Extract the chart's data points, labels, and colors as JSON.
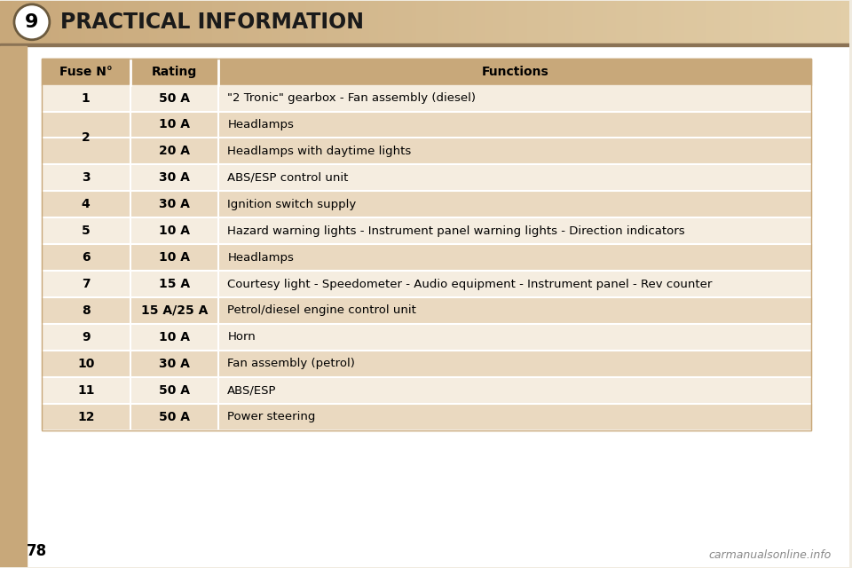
{
  "title": "PRACTICAL INFORMATION",
  "chapter_num": "9",
  "page_num": "78",
  "watermark": "carmanualsonline.info",
  "header_bg_left": "#C8A87A",
  "header_bg_right": "#E8D5B0",
  "header_text_color": "#1a1a1a",
  "table_header_bg": "#C8A87A",
  "row_bg_dark": "#EAD9C0",
  "row_bg_light": "#F5EDE0",
  "col_headers": [
    "Fuse N°",
    "Rating",
    "Functions"
  ],
  "rows": [
    {
      "fuse": "1",
      "rating": "50 A",
      "function": "\"2 Tronic\" gearbox - Fan assembly (diesel)",
      "span": 1
    },
    {
      "fuse": "2",
      "rating": "10 A",
      "function": "Headlamps",
      "span": 2
    },
    {
      "fuse": "",
      "rating": "20 A",
      "function": "Headlamps with daytime lights",
      "span": 0
    },
    {
      "fuse": "3",
      "rating": "30 A",
      "function": "ABS/ESP control unit",
      "span": 1
    },
    {
      "fuse": "4",
      "rating": "30 A",
      "function": "Ignition switch supply",
      "span": 1
    },
    {
      "fuse": "5",
      "rating": "10 A",
      "function": "Hazard warning lights - Instrument panel warning lights - Direction indicators",
      "span": 1
    },
    {
      "fuse": "6",
      "rating": "10 A",
      "function": "Headlamps",
      "span": 1
    },
    {
      "fuse": "7",
      "rating": "15 A",
      "function": "Courtesy light - Speedometer - Audio equipment - Instrument panel - Rev counter",
      "span": 1
    },
    {
      "fuse": "8",
      "rating": "15 A/25 A",
      "function": "Petrol/diesel engine control unit",
      "span": 1
    },
    {
      "fuse": "9",
      "rating": "10 A",
      "function": "Horn",
      "span": 1
    },
    {
      "fuse": "10",
      "rating": "30 A",
      "function": "Fan assembly (petrol)",
      "span": 1
    },
    {
      "fuse": "11",
      "rating": "50 A",
      "function": "ABS/ESP",
      "span": 1
    },
    {
      "fuse": "12",
      "rating": "50 A",
      "function": "Power steering",
      "span": 1
    }
  ],
  "bg_color": "#F0EBE0",
  "sidebar_color": "#C8A87A",
  "bottom_area_color": "#FFFFFF",
  "divider_color": "#FFFFFF",
  "table_border_color": "#C8A87A",
  "header_line_color": "#8B7355"
}
